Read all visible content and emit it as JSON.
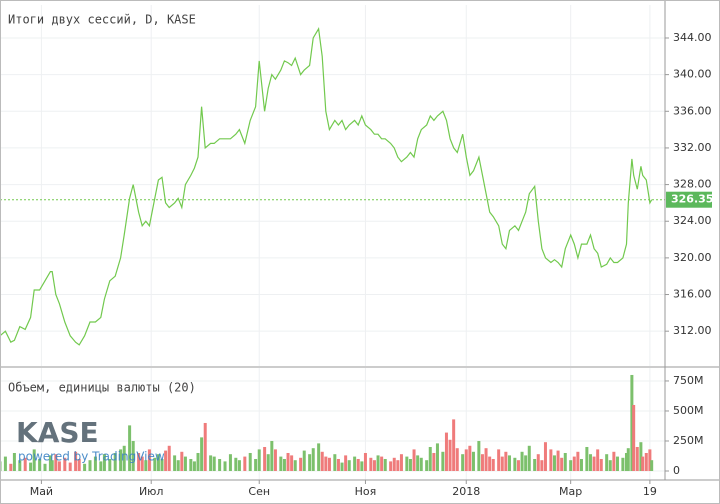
{
  "chart_data": [
    {
      "type": "line",
      "title": "Итоги двух сессий, D, KASE",
      "color": "#72c94e",
      "grid": true,
      "x": [
        0,
        3,
        6,
        8,
        11,
        14,
        17,
        19,
        22,
        25,
        28,
        29,
        31,
        33,
        36,
        39,
        42,
        44,
        47,
        50,
        53,
        56,
        58,
        61,
        64,
        67,
        69,
        72,
        74,
        77,
        79,
        81,
        83,
        86,
        88,
        90,
        92,
        94,
        97,
        99,
        101,
        103,
        106,
        108,
        110,
        112,
        114,
        117,
        119,
        122,
        125,
        128,
        131,
        133,
        136,
        139,
        142,
        144,
        147,
        149,
        151,
        153,
        156,
        158,
        160,
        162,
        164,
        167,
        169,
        172,
        174,
        177,
        179,
        181,
        183,
        186,
        188,
        190,
        192,
        194,
        197,
        199,
        201,
        203,
        206,
        208,
        210,
        212,
        214,
        217,
        219,
        221,
        223,
        226,
        228,
        230,
        232,
        234,
        237,
        239,
        241,
        243,
        246,
        248,
        250,
        252,
        254,
        257,
        259,
        261,
        263,
        266,
        268,
        270,
        272,
        274,
        277,
        279,
        281,
        283,
        286,
        288,
        290,
        292,
        294,
        297,
        299,
        301,
        303,
        306,
        308,
        310,
        312,
        314,
        317,
        319,
        321,
        323,
        326,
        328,
        330,
        332,
        334,
        337,
        339,
        341,
        343,
        346,
        348,
        349,
        351,
        352,
        354,
        356,
        357,
        359,
        361,
        362
      ],
      "values": [
        311.5,
        312,
        310.8,
        311,
        312.5,
        312.2,
        313.5,
        316.5,
        316.5,
        317.5,
        318.5,
        318.5,
        316,
        315,
        313,
        311.5,
        310.8,
        310.5,
        311.5,
        313,
        313,
        313.5,
        315.5,
        317.5,
        318,
        320,
        322.5,
        326.5,
        328,
        325,
        323.5,
        324,
        323.5,
        326.5,
        328.5,
        328.8,
        326,
        325.5,
        326,
        326.5,
        325.5,
        328,
        329,
        329.8,
        331,
        336.5,
        332,
        332.5,
        332.5,
        333,
        333,
        333,
        333.5,
        334,
        332.5,
        335,
        336.5,
        341.5,
        336,
        338.5,
        340,
        339.5,
        340.5,
        341.5,
        341.3,
        341,
        341.8,
        340,
        340.5,
        341,
        344,
        345,
        342,
        336,
        334,
        335,
        334.5,
        335,
        334,
        334.5,
        335,
        334.5,
        335.5,
        334.5,
        334,
        333.5,
        333.5,
        333,
        333,
        332.5,
        332,
        331,
        330.5,
        331,
        331.5,
        331,
        333,
        334,
        334.5,
        335.5,
        335,
        335.5,
        336,
        335,
        333,
        332,
        331.5,
        333.5,
        331,
        329,
        329.5,
        331,
        329,
        327,
        325,
        324.5,
        323.5,
        321.5,
        321,
        323,
        323.5,
        323,
        324,
        325,
        327,
        327.8,
        324,
        321,
        320,
        319.5,
        319.8,
        319.5,
        319,
        321,
        322.5,
        321.5,
        320,
        321.5,
        321.5,
        322.5,
        321,
        320.5,
        319,
        319.3,
        320,
        319.5,
        319.5,
        320,
        321.5,
        326,
        330.8,
        329,
        327.5,
        330,
        329,
        328.5,
        326,
        326.35
      ],
      "last_price": 326.35,
      "xlim": [
        0,
        369.4
      ],
      "ylim": [
        308.2,
        347.6
      ],
      "yticks": [
        {
          "value": 312,
          "label": "312.00"
        },
        {
          "value": 316,
          "label": "316.00"
        },
        {
          "value": 320,
          "label": "320.00"
        },
        {
          "value": 324,
          "label": "324.00"
        },
        {
          "value": 328,
          "label": "328.00"
        },
        {
          "value": 332,
          "label": "332.00"
        },
        {
          "value": 336,
          "label": "336.00"
        },
        {
          "value": 340,
          "label": "340.00"
        },
        {
          "value": 344,
          "label": "344.00"
        }
      ]
    },
    {
      "type": "bar",
      "title": "Объем, единицы валюты (20)",
      "up_color": "#7cc06c",
      "down_color": "#ef7b7b",
      "grid": true,
      "logo": "KASE",
      "watermark": "powered by TradingView",
      "x": [
        0,
        3,
        6,
        8,
        11,
        14,
        17,
        19,
        22,
        25,
        28,
        29,
        31,
        33,
        36,
        39,
        42,
        44,
        47,
        50,
        53,
        56,
        58,
        61,
        64,
        67,
        69,
        72,
        74,
        77,
        79,
        81,
        83,
        86,
        88,
        90,
        92,
        94,
        97,
        99,
        101,
        103,
        106,
        108,
        110,
        112,
        114,
        117,
        119,
        122,
        125,
        128,
        131,
        133,
        136,
        139,
        142,
        144,
        147,
        149,
        151,
        153,
        156,
        158,
        160,
        162,
        164,
        167,
        169,
        172,
        174,
        177,
        179,
        181,
        183,
        186,
        188,
        190,
        192,
        194,
        197,
        199,
        201,
        203,
        206,
        208,
        210,
        212,
        214,
        217,
        219,
        221,
        223,
        226,
        228,
        230,
        232,
        234,
        237,
        239,
        241,
        243,
        246,
        248,
        250,
        252,
        254,
        257,
        259,
        261,
        263,
        266,
        268,
        270,
        272,
        274,
        277,
        279,
        281,
        283,
        286,
        288,
        290,
        292,
        294,
        297,
        299,
        301,
        303,
        306,
        308,
        310,
        312,
        314,
        317,
        319,
        321,
        323,
        326,
        328,
        330,
        332,
        334,
        337,
        339,
        341,
        343,
        346,
        348,
        349,
        351,
        352,
        354,
        356,
        357,
        359,
        361,
        362
      ],
      "values": [
        80000000.0,
        120000000.0,
        60000000.0,
        150000000.0,
        90000000.0,
        110000000.0,
        70000000.0,
        180000000.0,
        100000000.0,
        60000000.0,
        130000000.0,
        90000000.0,
        140000000.0,
        80000000.0,
        110000000.0,
        70000000.0,
        160000000.0,
        100000000.0,
        60000000.0,
        90000000.0,
        120000000.0,
        80000000.0,
        140000000.0,
        100000000.0,
        150000000.0,
        180000000.0,
        210000000.0,
        380000000.0,
        250000000.0,
        150000000.0,
        120000000.0,
        90000000.0,
        180000000.0,
        110000000.0,
        140000000.0,
        100000000.0,
        170000000.0,
        210000000.0,
        130000000.0,
        90000000.0,
        160000000.0,
        120000000.0,
        100000000.0,
        80000000.0,
        150000000.0,
        280000000.0,
        400000000.0,
        130000000.0,
        120000000.0,
        100000000.0,
        80000000.0,
        140000000.0,
        110000000.0,
        90000000.0,
        120000000.0,
        150000000.0,
        100000000.0,
        180000000.0,
        200000000.0,
        140000000.0,
        250000000.0,
        180000000.0,
        120000000.0,
        100000000.0,
        150000000.0,
        130000000.0,
        90000000.0,
        110000000.0,
        170000000.0,
        140000000.0,
        190000000.0,
        230000000.0,
        160000000.0,
        120000000.0,
        110000000.0,
        140000000.0,
        100000000.0,
        70000000.0,
        130000000.0,
        90000000.0,
        120000000.0,
        100000000.0,
        80000000.0,
        150000000.0,
        110000000.0,
        90000000.0,
        130000000.0,
        120000000.0,
        100000000.0,
        80000000.0,
        110000000.0,
        90000000.0,
        140000000.0,
        120000000.0,
        100000000.0,
        180000000.0,
        130000000.0,
        110000000.0,
        90000000.0,
        200000000.0,
        150000000.0,
        230000000.0,
        160000000.0,
        320000000.0,
        260000000.0,
        430000000.0,
        190000000.0,
        140000000.0,
        180000000.0,
        210000000.0,
        160000000.0,
        250000000.0,
        140000000.0,
        190000000.0,
        120000000.0,
        100000000.0,
        180000000.0,
        120000000.0,
        160000000.0,
        130000000.0,
        110000000.0,
        90000000.0,
        160000000.0,
        130000000.0,
        210000000.0,
        100000000.0,
        140000000.0,
        90000000.0,
        240000000.0,
        180000000.0,
        130000000.0,
        170000000.0,
        110000000.0,
        150000000.0,
        90000000.0,
        120000000.0,
        160000000.0,
        100000000.0,
        200000000.0,
        140000000.0,
        120000000.0,
        180000000.0,
        100000000.0,
        140000000.0,
        90000000.0,
        160000000.0,
        120000000.0,
        110000000.0,
        150000000.0,
        190000000.0,
        800000000.0,
        550000000.0,
        200000000.0,
        240000000.0,
        120000000.0,
        150000000.0,
        180000000.0,
        90000000.0
      ],
      "xlim": [
        0,
        369.4
      ],
      "ylim": [
        -75000000,
        858000000
      ],
      "yticks": [
        0,
        {
          "value": 250000000,
          "label": "250M"
        },
        {
          "value": 500000000,
          "label": "500M"
        },
        {
          "value": 750000000,
          "label": "750M"
        }
      ],
      "xticks": [
        {
          "value": 23,
          "label": "Май"
        },
        {
          "value": 84,
          "label": "Июл"
        },
        {
          "value": 144,
          "label": "Сен"
        },
        {
          "value": 203,
          "label": "Ноя"
        },
        {
          "value": 259,
          "label": "2018"
        },
        {
          "value": 317,
          "label": "Мар"
        },
        {
          "value": 361,
          "label": "19"
        }
      ]
    }
  ]
}
